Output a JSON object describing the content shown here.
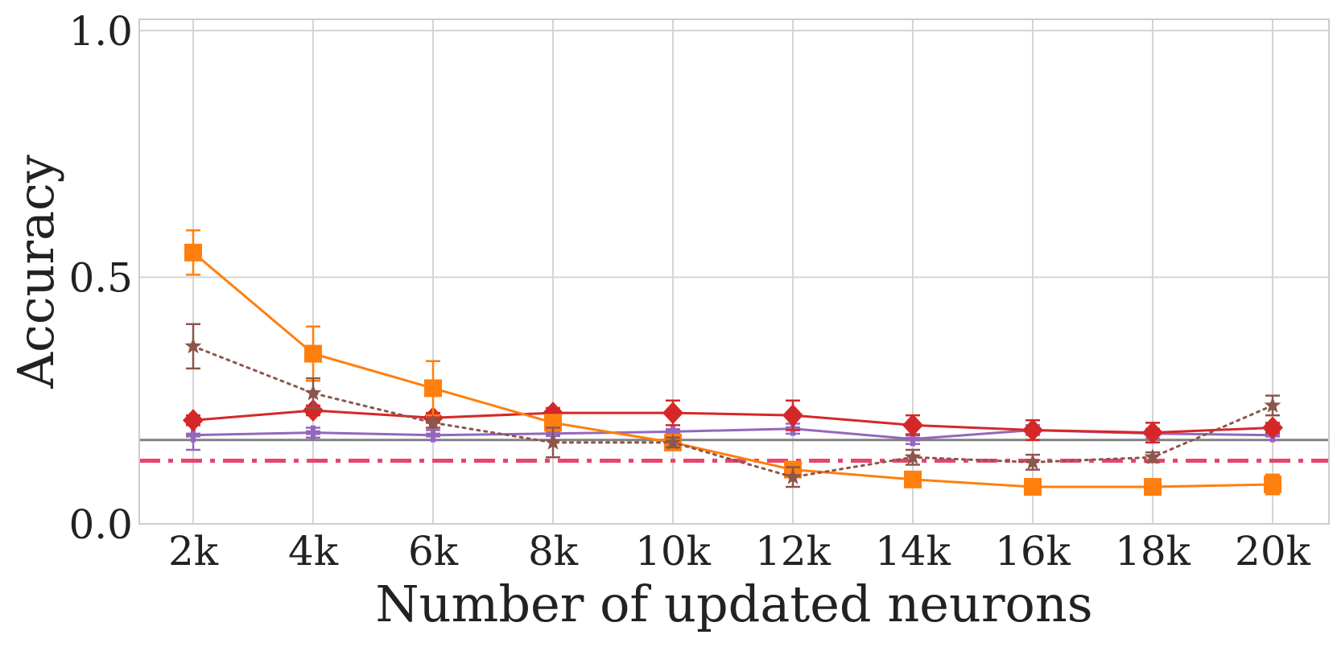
{
  "chart_data": {
    "type": "line",
    "xlabel": "Number of updated neurons",
    "ylabel": "Accuracy",
    "categories": [
      "2k",
      "4k",
      "6k",
      "8k",
      "10k",
      "12k",
      "14k",
      "16k",
      "18k",
      "20k"
    ],
    "ylim": [
      0.0,
      1.0
    ],
    "yticks": [
      "0.0",
      "0.5",
      "1.0"
    ],
    "grid": true,
    "series": [
      {
        "color": "#ff7f0e",
        "marker": "square",
        "linestyle": "solid",
        "values": [
          0.55,
          0.345,
          0.275,
          0.205,
          0.165,
          0.11,
          0.09,
          0.075,
          0.075,
          0.08
        ],
        "errors": [
          0.045,
          0.055,
          0.055,
          0.01,
          0.015,
          0.01,
          0.005,
          0.005,
          0.005,
          0.02
        ]
      },
      {
        "color": "#8c564b",
        "marker": "star",
        "linestyle": "dotted",
        "values": [
          0.36,
          0.265,
          0.205,
          0.165,
          0.165,
          0.095,
          0.135,
          0.125,
          0.135,
          0.24
        ],
        "errors": [
          0.045,
          0.03,
          0.01,
          0.03,
          0.01,
          0.02,
          0.015,
          0.015,
          0.01,
          0.02
        ]
      },
      {
        "color": "#d62728",
        "marker": "diamond",
        "linestyle": "solid",
        "values": [
          0.21,
          0.23,
          0.215,
          0.225,
          0.225,
          0.22,
          0.2,
          0.19,
          0.185,
          0.195
        ],
        "errors": [
          0.01,
          0.01,
          0.01,
          0.01,
          0.025,
          0.03,
          0.02,
          0.02,
          0.02,
          0.01
        ]
      },
      {
        "color": "#9467bd",
        "marker": "plus",
        "linestyle": "solid",
        "values": [
          0.18,
          0.185,
          0.18,
          0.183,
          0.187,
          0.193,
          0.172,
          0.19,
          0.183,
          0.18
        ],
        "errors": [
          0.03,
          0.01,
          0.01,
          0.005,
          0.005,
          0.01,
          0.01,
          0.01,
          0.01,
          0.01
        ]
      }
    ],
    "reference_lines": [
      {
        "color": "#808080",
        "linestyle": "solid",
        "value": 0.17
      },
      {
        "color": "#e8456e",
        "linestyle": "dashdot",
        "value": 0.128
      }
    ]
  }
}
